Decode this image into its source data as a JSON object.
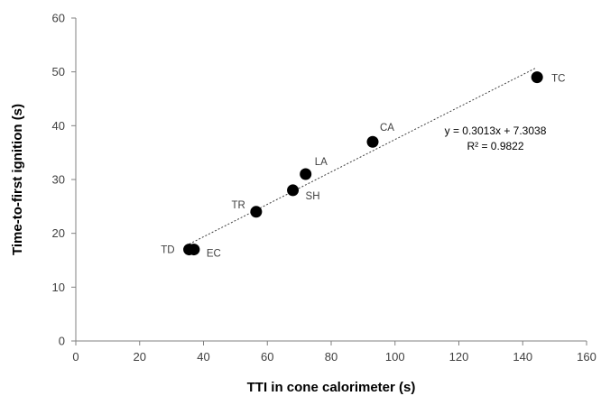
{
  "chart_data": {
    "type": "scatter",
    "xlabel": "TTI in cone calorimeter (s)",
    "ylabel": "Time-to-first ignition (s)",
    "xlim": [
      0,
      160
    ],
    "ylim": [
      0,
      60
    ],
    "x_ticks": [
      0,
      20,
      40,
      60,
      80,
      100,
      120,
      140,
      160
    ],
    "y_ticks": [
      0,
      10,
      20,
      30,
      40,
      50,
      60
    ],
    "grid": false,
    "legend": "none",
    "series": [
      {
        "points": [
          {
            "label": "TD",
            "x": 35.5,
            "y": 17
          },
          {
            "label": "EC",
            "x": 37,
            "y": 17
          },
          {
            "label": "TR",
            "x": 56.5,
            "y": 24
          },
          {
            "label": "SH",
            "x": 68,
            "y": 28
          },
          {
            "label": "LA",
            "x": 72,
            "y": 31
          },
          {
            "label": "CA",
            "x": 93,
            "y": 37
          },
          {
            "label": "TC",
            "x": 144.5,
            "y": 49
          }
        ]
      }
    ],
    "trendline": {
      "type": "linear",
      "slope": 0.3013,
      "intercept": 7.3038,
      "x_range": [
        34.5,
        144
      ],
      "style": "dotted",
      "equation_label": "y = 0.3013x + 7.3038",
      "r2_label": "R² = 0.9822"
    },
    "colors": {
      "marker": "#000000",
      "axis": "#808080",
      "trendline": "#404040"
    }
  }
}
